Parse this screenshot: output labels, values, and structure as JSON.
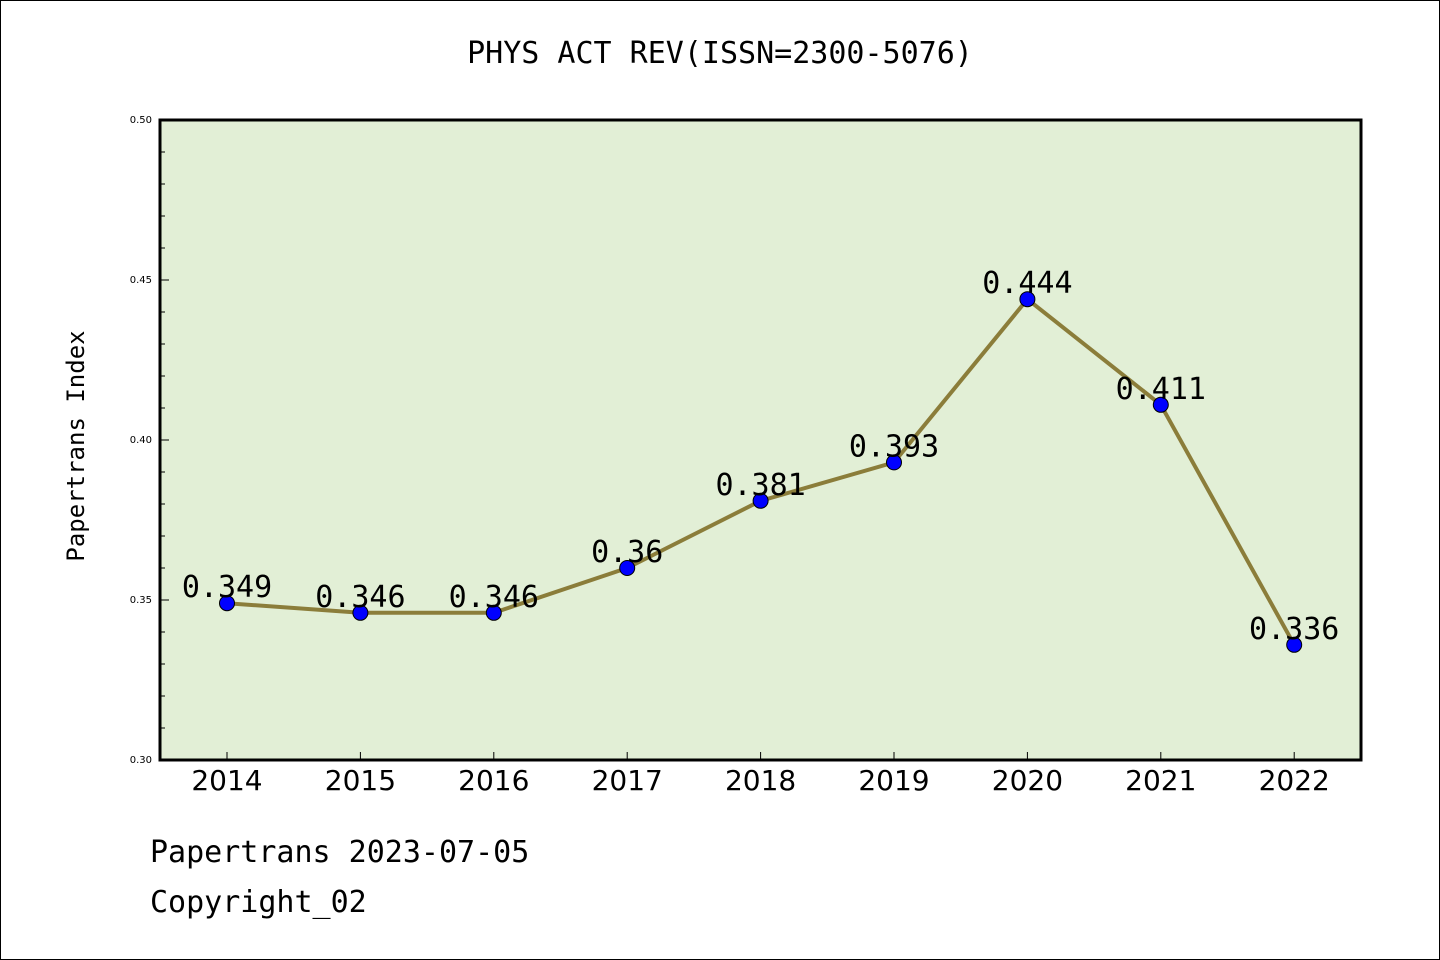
{
  "title": "PHYS ACT REV(ISSN=2300-5076)",
  "footer": {
    "line1": "Papertrans 2023-07-05",
    "line2": "Copyright_02"
  },
  "colors": {
    "plot_bg": "#e2efd6",
    "line": "#8b7d3a",
    "marker": "#0000ff",
    "frame": "#000000"
  },
  "chart_data": {
    "type": "line",
    "title": "PHYS ACT REV(ISSN=2300-5076)",
    "xlabel": "",
    "ylabel": "Papertrans Index",
    "categories": [
      "2014",
      "2015",
      "2016",
      "2017",
      "2018",
      "2019",
      "2020",
      "2021",
      "2022"
    ],
    "series": [
      {
        "values": [
          0.349,
          0.346,
          0.346,
          0.36,
          0.381,
          0.393,
          0.444,
          0.411,
          0.336
        ],
        "labels": [
          "0.349",
          "0.346",
          "0.346",
          "0.36",
          "0.381",
          "0.393",
          "0.444",
          "0.411",
          "0.336"
        ]
      }
    ],
    "ylim": [
      0.3,
      0.5
    ],
    "yticks": [
      "0.30",
      "0.35",
      "0.40",
      "0.45",
      "0.50"
    ],
    "grid": false,
    "legend": "none"
  }
}
